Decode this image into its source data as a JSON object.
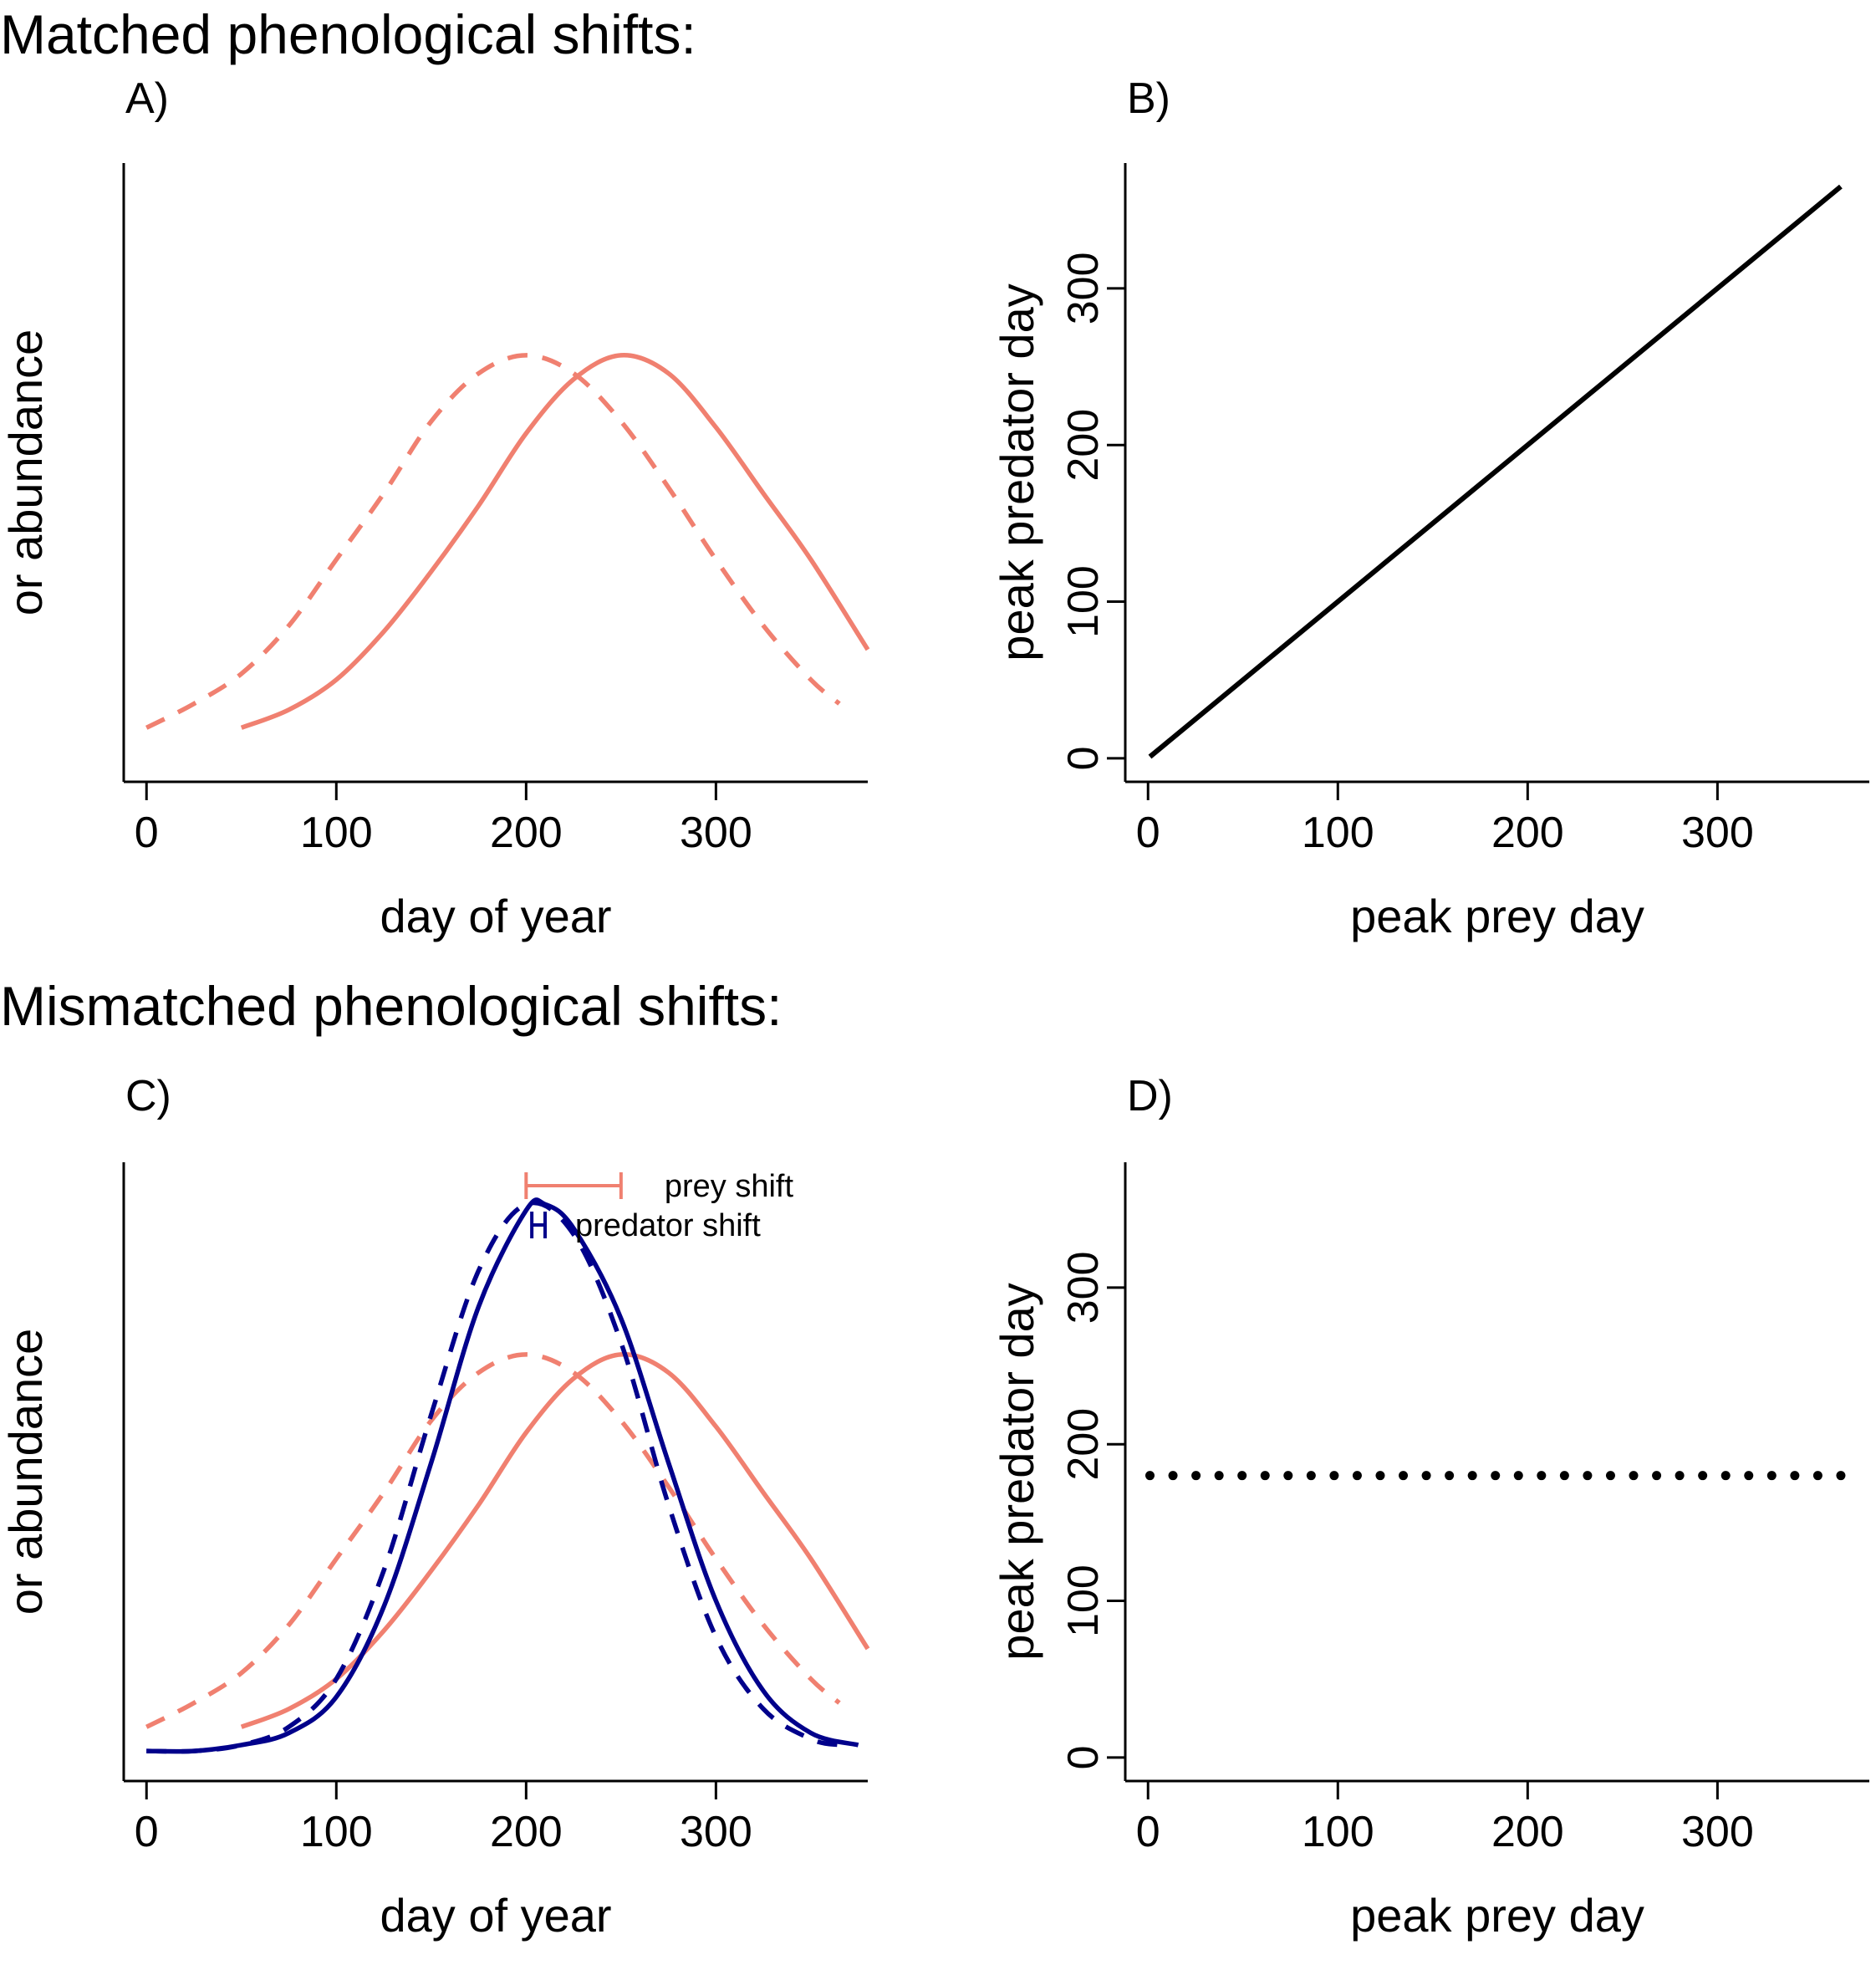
{
  "figure": {
    "section_titles": [
      "Matched phenological shifts:",
      "Mismatched phenological shifts:"
    ]
  },
  "colors": {
    "prey": "#F08070",
    "predator": "#00008B",
    "black": "#000000"
  },
  "chart_data": [
    {
      "id": "A",
      "panel_label": "A)",
      "type": "line",
      "xlabel": "day of year",
      "ylabel": "occurrence probability\nor abundance",
      "xlim": [
        -12,
        380
      ],
      "ylim": [
        -0.03,
        1.0
      ],
      "xticks": [
        0,
        100,
        200,
        300
      ],
      "yticks": [],
      "series": [
        {
          "role": "prey",
          "color": "prey",
          "dash": "dashed",
          "x": [
            0,
            25,
            50,
            75,
            100,
            125,
            150,
            175,
            200,
            225,
            250,
            275,
            300,
            325,
            350,
            365
          ],
          "y": [
            0.06,
            0.1,
            0.15,
            0.23,
            0.34,
            0.45,
            0.57,
            0.65,
            0.68,
            0.65,
            0.57,
            0.46,
            0.34,
            0.23,
            0.14,
            0.1
          ]
        },
        {
          "role": "prey",
          "color": "prey",
          "dash": "solid",
          "x": [
            50,
            75,
            100,
            125,
            150,
            175,
            200,
            225,
            250,
            275,
            300,
            325,
            350,
            380
          ],
          "y": [
            0.06,
            0.09,
            0.14,
            0.22,
            0.32,
            0.43,
            0.55,
            0.64,
            0.68,
            0.65,
            0.56,
            0.45,
            0.34,
            0.19
          ]
        }
      ]
    },
    {
      "id": "B",
      "panel_label": "B)",
      "type": "line",
      "xlabel": "peak prey day",
      "ylabel": "peak predator day",
      "xlim": [
        -12,
        380
      ],
      "ylim": [
        -15,
        380
      ],
      "xticks": [
        0,
        100,
        200,
        300
      ],
      "yticks": [
        0,
        100,
        200,
        300
      ],
      "series": [
        {
          "role": "relation",
          "color": "black",
          "dash": "solid",
          "x": [
            1,
            365
          ],
          "y": [
            1,
            365
          ]
        }
      ]
    },
    {
      "id": "C",
      "panel_label": "C)",
      "type": "line",
      "xlabel": "day of year",
      "ylabel": "occurrence probability\nor abundance",
      "xlim": [
        -12,
        380
      ],
      "ylim": [
        -0.03,
        1.0
      ],
      "xticks": [
        0,
        100,
        200,
        300
      ],
      "yticks": [],
      "legend": {
        "items": [
          {
            "label": "prey shift",
            "color": "prey",
            "from": 200,
            "to": 250
          },
          {
            "label": "predator shift",
            "color": "predator",
            "from": 203,
            "to": 210
          }
        ]
      },
      "series": [
        {
          "role": "prey",
          "color": "prey",
          "dash": "dashed",
          "x": [
            0,
            25,
            50,
            75,
            100,
            125,
            150,
            175,
            200,
            225,
            250,
            275,
            300,
            325,
            350,
            365
          ],
          "y": [
            0.06,
            0.1,
            0.15,
            0.23,
            0.34,
            0.45,
            0.57,
            0.65,
            0.68,
            0.65,
            0.57,
            0.46,
            0.34,
            0.23,
            0.14,
            0.1
          ]
        },
        {
          "role": "prey",
          "color": "prey",
          "dash": "solid",
          "x": [
            50,
            75,
            100,
            125,
            150,
            175,
            200,
            225,
            250,
            275,
            300,
            325,
            350,
            380
          ],
          "y": [
            0.06,
            0.09,
            0.14,
            0.22,
            0.32,
            0.43,
            0.55,
            0.64,
            0.68,
            0.65,
            0.56,
            0.45,
            0.34,
            0.19
          ]
        },
        {
          "role": "predator",
          "color": "predator",
          "dash": "dashed",
          "x": [
            0,
            25,
            50,
            75,
            100,
            125,
            150,
            175,
            200,
            225,
            250,
            275,
            300,
            325,
            350,
            365
          ],
          "y": [
            0.02,
            0.02,
            0.03,
            0.06,
            0.14,
            0.32,
            0.58,
            0.82,
            0.93,
            0.88,
            0.7,
            0.43,
            0.21,
            0.09,
            0.04,
            0.03
          ]
        },
        {
          "role": "predator",
          "color": "predator",
          "dash": "solid",
          "x": [
            0,
            25,
            50,
            75,
            100,
            125,
            150,
            175,
            200,
            210,
            225,
            250,
            275,
            300,
            325,
            350,
            375
          ],
          "y": [
            0.02,
            0.02,
            0.03,
            0.05,
            0.11,
            0.26,
            0.5,
            0.76,
            0.92,
            0.93,
            0.89,
            0.74,
            0.5,
            0.27,
            0.12,
            0.05,
            0.03
          ]
        }
      ]
    },
    {
      "id": "D",
      "panel_label": "D)",
      "type": "scatter",
      "xlabel": "peak prey day",
      "ylabel": "peak predator day",
      "xlim": [
        -12,
        380
      ],
      "ylim": [
        -15,
        380
      ],
      "xticks": [
        0,
        100,
        200,
        300
      ],
      "yticks": [
        0,
        100,
        200,
        300
      ],
      "series": [
        {
          "role": "relation",
          "color": "black",
          "dash": "dotted",
          "x": [
            1,
            365
          ],
          "y": [
            180,
            180
          ]
        }
      ]
    }
  ]
}
